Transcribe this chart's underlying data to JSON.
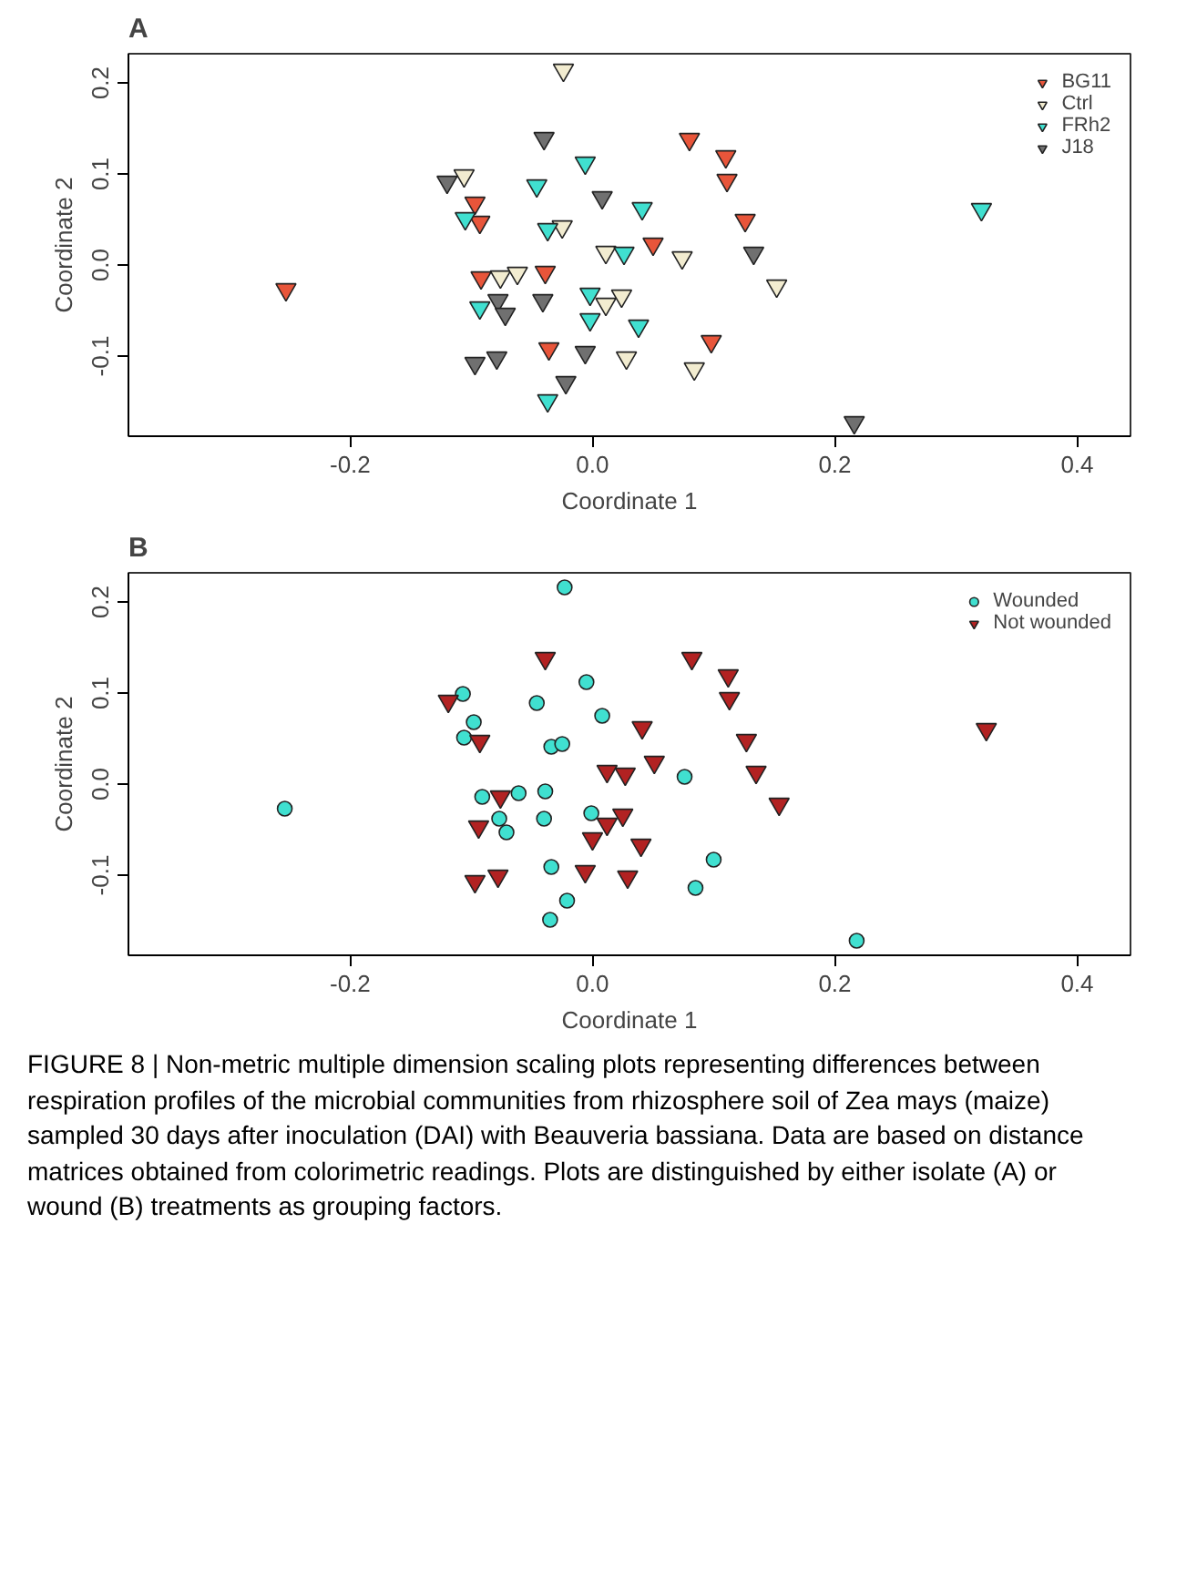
{
  "chart_data": [
    {
      "type": "scatter",
      "title": "A",
      "xlabel": "Coordinate 1",
      "ylabel": "Coordinate 2",
      "xlim": [
        -0.383,
        0.444
      ],
      "ylim": [
        -0.188,
        0.232
      ],
      "xticks": [
        {
          "value": -0.2,
          "label": "-0.2"
        },
        {
          "value": 0,
          "label": "0.0"
        },
        {
          "value": 0.2,
          "label": "0.2"
        },
        {
          "value": 0.4,
          "label": "0.4"
        }
      ],
      "yticks": [
        {
          "value": -0.1,
          "label": "-0.1"
        },
        {
          "value": 0,
          "label": "0.0"
        },
        {
          "value": 0.1,
          "label": "0.1"
        },
        {
          "value": 0.2,
          "label": "0.2"
        }
      ],
      "grid": false,
      "legend": "top right",
      "marker": "triangle",
      "series": [
        {
          "name": "BG11",
          "color": "#e8553a",
          "x": [
            -0.253,
            -0.097,
            -0.093,
            -0.092,
            -0.039,
            -0.036,
            0.08,
            0.11,
            0.111,
            0.126,
            0.05,
            0.098
          ],
          "values": [
            -0.027,
            0.068,
            0.047,
            -0.014,
            -0.008,
            -0.092,
            0.138,
            0.119,
            0.093,
            0.049,
            0.023,
            -0.084
          ]
        },
        {
          "name": "Ctrl",
          "color": "#f2ecd0",
          "x": [
            -0.024,
            -0.106,
            -0.025,
            -0.076,
            -0.062,
            0.011,
            0.011,
            0.024,
            0.074,
            0.152,
            0.028,
            0.084
          ],
          "values": [
            0.214,
            0.098,
            0.042,
            -0.013,
            -0.009,
            0.014,
            -0.043,
            -0.034,
            0.008,
            -0.023,
            -0.102,
            -0.114
          ]
        },
        {
          "name": "FRh2",
          "color": "#40e0d0",
          "x": [
            -0.006,
            -0.046,
            -0.105,
            -0.037,
            0.041,
            0.026,
            -0.093,
            -0.002,
            -0.002,
            0.038,
            -0.037,
            0.321
          ],
          "values": [
            0.112,
            0.087,
            0.051,
            0.039,
            0.062,
            0.013,
            -0.047,
            -0.032,
            -0.06,
            -0.067,
            -0.149,
            0.061
          ]
        },
        {
          "name": "J18",
          "color": "#707070",
          "x": [
            -0.04,
            -0.12,
            0.008,
            0.133,
            -0.078,
            -0.072,
            -0.041,
            -0.006,
            -0.079,
            -0.097,
            -0.022,
            0.216
          ],
          "values": [
            0.139,
            0.091,
            0.074,
            0.013,
            -0.039,
            -0.054,
            -0.039,
            -0.096,
            -0.102,
            -0.108,
            -0.129,
            -0.173
          ]
        }
      ]
    },
    {
      "type": "scatter",
      "title": "B",
      "xlabel": "Coordinate 1",
      "ylabel": "Coordinate 2",
      "xlim": [
        -0.383,
        0.444
      ],
      "ylim": [
        -0.188,
        0.232
      ],
      "xticks": [
        {
          "value": -0.2,
          "label": "-0.2"
        },
        {
          "value": 0,
          "label": "0.0"
        },
        {
          "value": 0.2,
          "label": "0.2"
        },
        {
          "value": 0.4,
          "label": "0.4"
        }
      ],
      "yticks": [
        {
          "value": -0.1,
          "label": "-0.1"
        },
        {
          "value": 0,
          "label": "0.0"
        },
        {
          "value": 0.1,
          "label": "0.1"
        },
        {
          "value": 0.2,
          "label": "0.2"
        }
      ],
      "grid": false,
      "legend": "top right",
      "annotations": [
        "FIGURE 8 | Non-metric multiple dimension scaling plots representing differences between respiration profiles of the microbial communities from rhizosphere soil of Zea mays (maize) sampled 30 days after inoculation (DAI) with Beauveria bassiana. Data are based on distance matrices obtained from colorimetric readings. Plots are distinguished by either isolate (A) or wound (B) treatments as grouping factors."
      ],
      "series": [
        {
          "name": "Wounded",
          "color": "#40e0d0",
          "marker": "circle",
          "x": [
            -0.023,
            -0.005,
            -0.107,
            -0.046,
            0.008,
            -0.098,
            -0.106,
            -0.034,
            -0.025,
            -0.254,
            -0.091,
            -0.061,
            -0.039,
            -0.077,
            -0.071,
            -0.04,
            -0.001,
            0.076,
            0.1,
            -0.034,
            -0.021,
            -0.035,
            0.085,
            0.218
          ],
          "values": [
            0.216,
            0.112,
            0.099,
            0.089,
            0.075,
            0.068,
            0.051,
            0.041,
            0.044,
            -0.027,
            -0.014,
            -0.01,
            -0.008,
            -0.038,
            -0.053,
            -0.038,
            -0.032,
            0.008,
            -0.083,
            -0.091,
            -0.128,
            -0.149,
            -0.114,
            -0.172
          ]
        },
        {
          "name": "Not wounded",
          "color": "#b22222",
          "marker": "triangle",
          "x": [
            -0.039,
            0.082,
            0.112,
            -0.119,
            0.113,
            0.041,
            -0.093,
            0.127,
            0.325,
            -0.076,
            0.012,
            0.027,
            0.051,
            0.135,
            0.154,
            -0.094,
            0.012,
            0.025,
            0.0,
            0.04,
            -0.006,
            0.029,
            -0.078,
            -0.097
          ],
          "values": [
            0.138,
            0.138,
            0.119,
            0.091,
            0.094,
            0.062,
            0.047,
            0.048,
            0.06,
            -0.014,
            0.014,
            0.011,
            0.024,
            0.013,
            -0.022,
            -0.047,
            -0.044,
            -0.034,
            -0.06,
            -0.067,
            -0.096,
            -0.102,
            -0.101,
            -0.107
          ]
        }
      ]
    }
  ]
}
